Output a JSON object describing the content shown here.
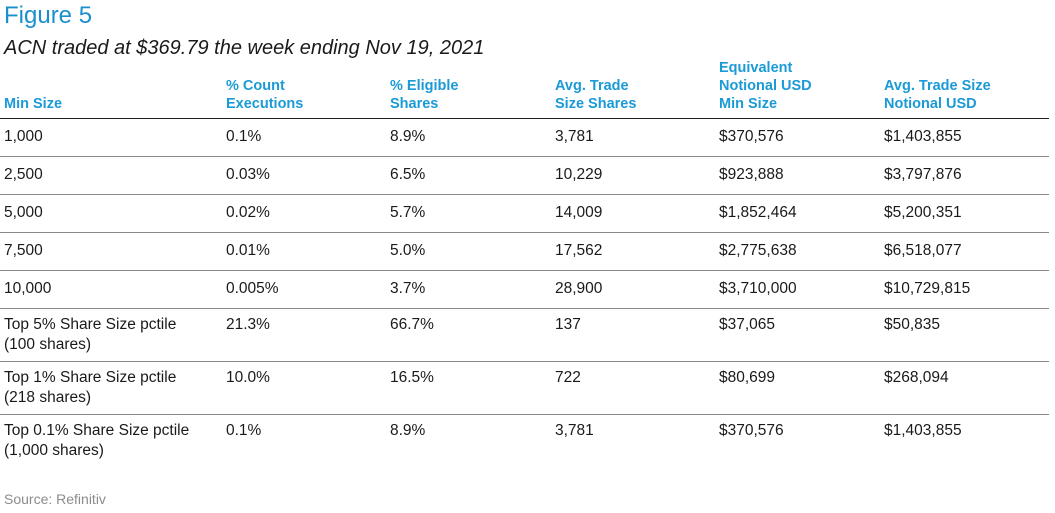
{
  "figure": {
    "title": "Figure 5",
    "subtitle": "ACN traded at $369.79 the week ending Nov 19, 2021"
  },
  "table": {
    "headers": [
      [
        "Min Size"
      ],
      [
        "% Count",
        "Executions"
      ],
      [
        "% Eligible",
        "Shares"
      ],
      [
        "Avg. Trade",
        "Size Shares"
      ],
      [
        "Equivalent",
        "Notional USD",
        "Min Size"
      ],
      [
        "Avg. Trade Size",
        "Notional USD"
      ]
    ],
    "rows": [
      [
        "1,000",
        "0.1%",
        "8.9%",
        "3,781",
        "$370,576",
        "$1,403,855"
      ],
      [
        "2,500",
        "0.03%",
        "6.5%",
        "10,229",
        "$923,888",
        "$3,797,876"
      ],
      [
        "5,000",
        "0.02%",
        "5.7%",
        "14,009",
        "$1,852,464",
        "$5,200,351"
      ],
      [
        "7,500",
        "0.01%",
        "5.0%",
        "17,562",
        "$2,775,638",
        "$6,518,077"
      ],
      [
        "10,000",
        "0.005%",
        "3.7%",
        "28,900",
        "$3,710,000",
        "$10,729,815"
      ],
      [
        "Top 5% Share Size pctile",
        "21.3%",
        "66.7%",
        "137",
        "$37,065",
        "$50,835"
      ],
      [
        "Top 1% Share Size pctile",
        "10.0%",
        "16.5%",
        "722",
        "$80,699",
        "$268,094"
      ],
      [
        "Top 0.1% Share Size pctile",
        "0.1%",
        "8.9%",
        "3,781",
        "$370,576",
        "$1,403,855"
      ]
    ],
    "row_notes": [
      "",
      "",
      "",
      "",
      "",
      "(100 shares)",
      "(218 shares)",
      "(1,000 shares)"
    ]
  },
  "source": "Source: Refinitiv",
  "colors": {
    "accent": "#1a9ad6",
    "title": "#1a8fcf",
    "source": "#8c8c8c"
  }
}
